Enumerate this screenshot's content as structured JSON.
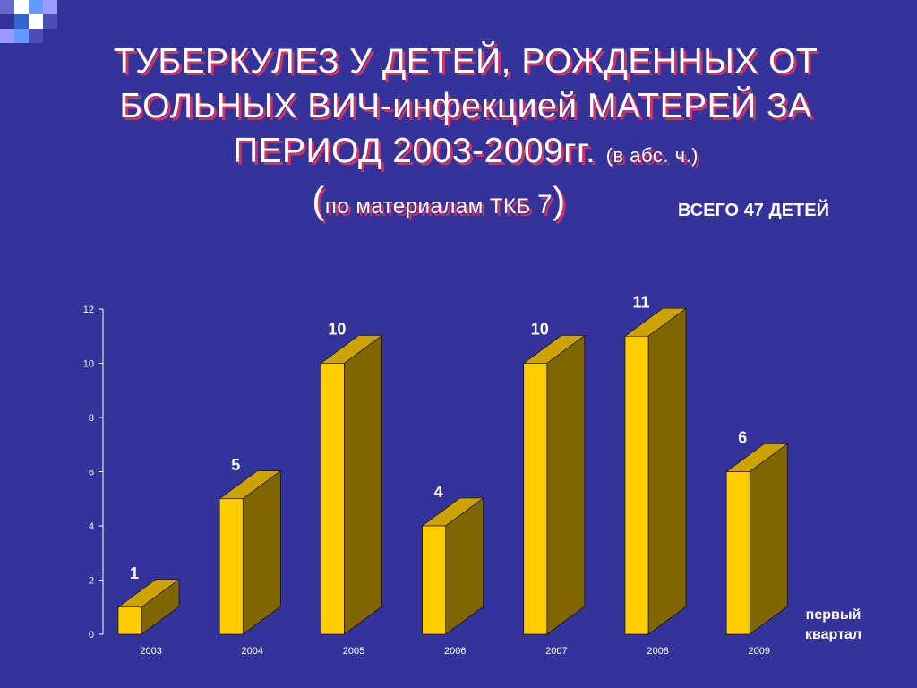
{
  "slide": {
    "title_line1": "ТУБЕРКУЛЕЗ У ДЕТЕЙ, РОЖДЕННЫХ ОТ",
    "title_line2": "БОЛЬНЫХ ВИЧ-инфекцией МАТЕРЕЙ ЗА",
    "title_line3": "ПЕРИОД 2003-2009гг.",
    "title_units": "(в абс. ч.)",
    "paren_open": "(",
    "source_text": "по материалам ТКБ ",
    "source_num": "7",
    "paren_close": ")",
    "total_text": "ВСЕГО 47 ДЕТЕЙ",
    "note_line1": "первый",
    "note_line2": "квартал"
  },
  "colors": {
    "background": "#333399",
    "bar_front": "#FFCC00",
    "bar_side": "#806600",
    "bar_top": "#CCA300",
    "title_shadow": "#CC3366"
  },
  "chart_data": {
    "type": "bar",
    "categories": [
      "2003",
      "2004",
      "2005",
      "2006",
      "2007",
      "2008",
      "2009"
    ],
    "values": [
      1,
      5,
      10,
      4,
      10,
      11,
      6
    ],
    "data_labels": [
      "1",
      "5",
      "10",
      "4",
      "10",
      "11",
      "6"
    ],
    "yticks": [
      "0",
      "2",
      "4",
      "6",
      "8",
      "10",
      "12"
    ],
    "ylim": [
      0,
      12
    ],
    "grid": false,
    "style": "3d-bar"
  }
}
